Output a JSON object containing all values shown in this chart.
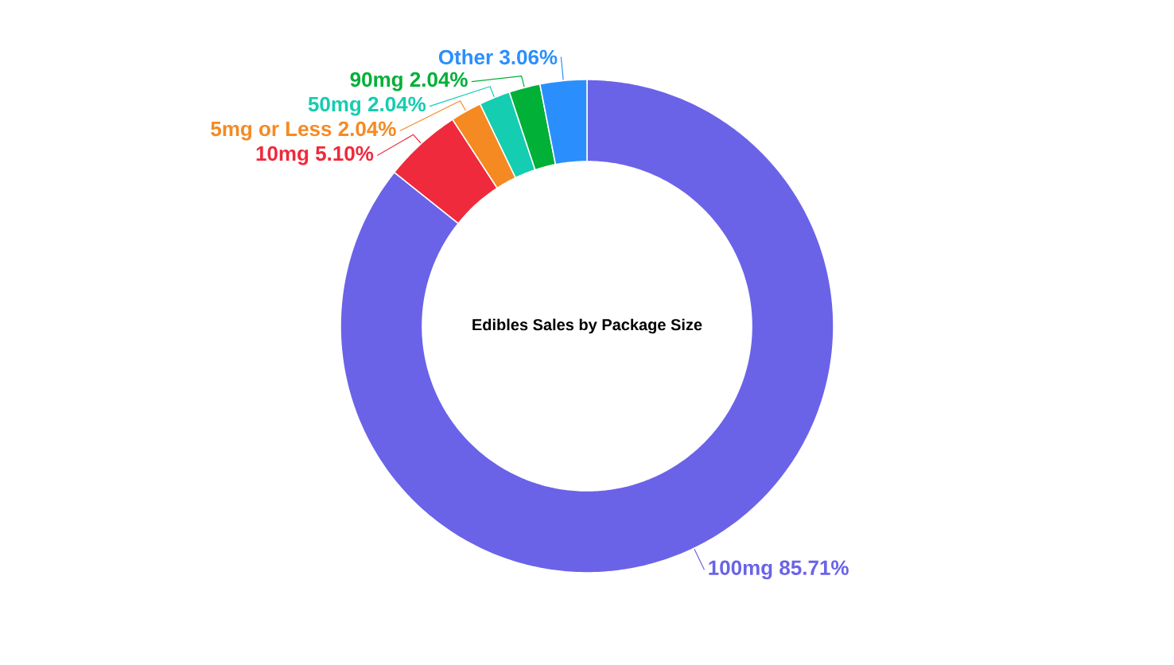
{
  "chart_data": {
    "type": "donut",
    "title": "Edibles Sales by Package Size",
    "categories": [
      "100mg",
      "10mg",
      "5mg or Less",
      "50mg",
      "90mg",
      "Other"
    ],
    "values": [
      85.71,
      5.1,
      2.04,
      2.04,
      2.04,
      3.06
    ],
    "value_labels": [
      "85.71%",
      "5.10%",
      "2.04%",
      "2.04%",
      "2.04%",
      "3.06%"
    ],
    "colors": [
      "#6a63e8",
      "#ee2a3c",
      "#f58a22",
      "#15cdb0",
      "#00b037",
      "#2a8ffc"
    ]
  }
}
